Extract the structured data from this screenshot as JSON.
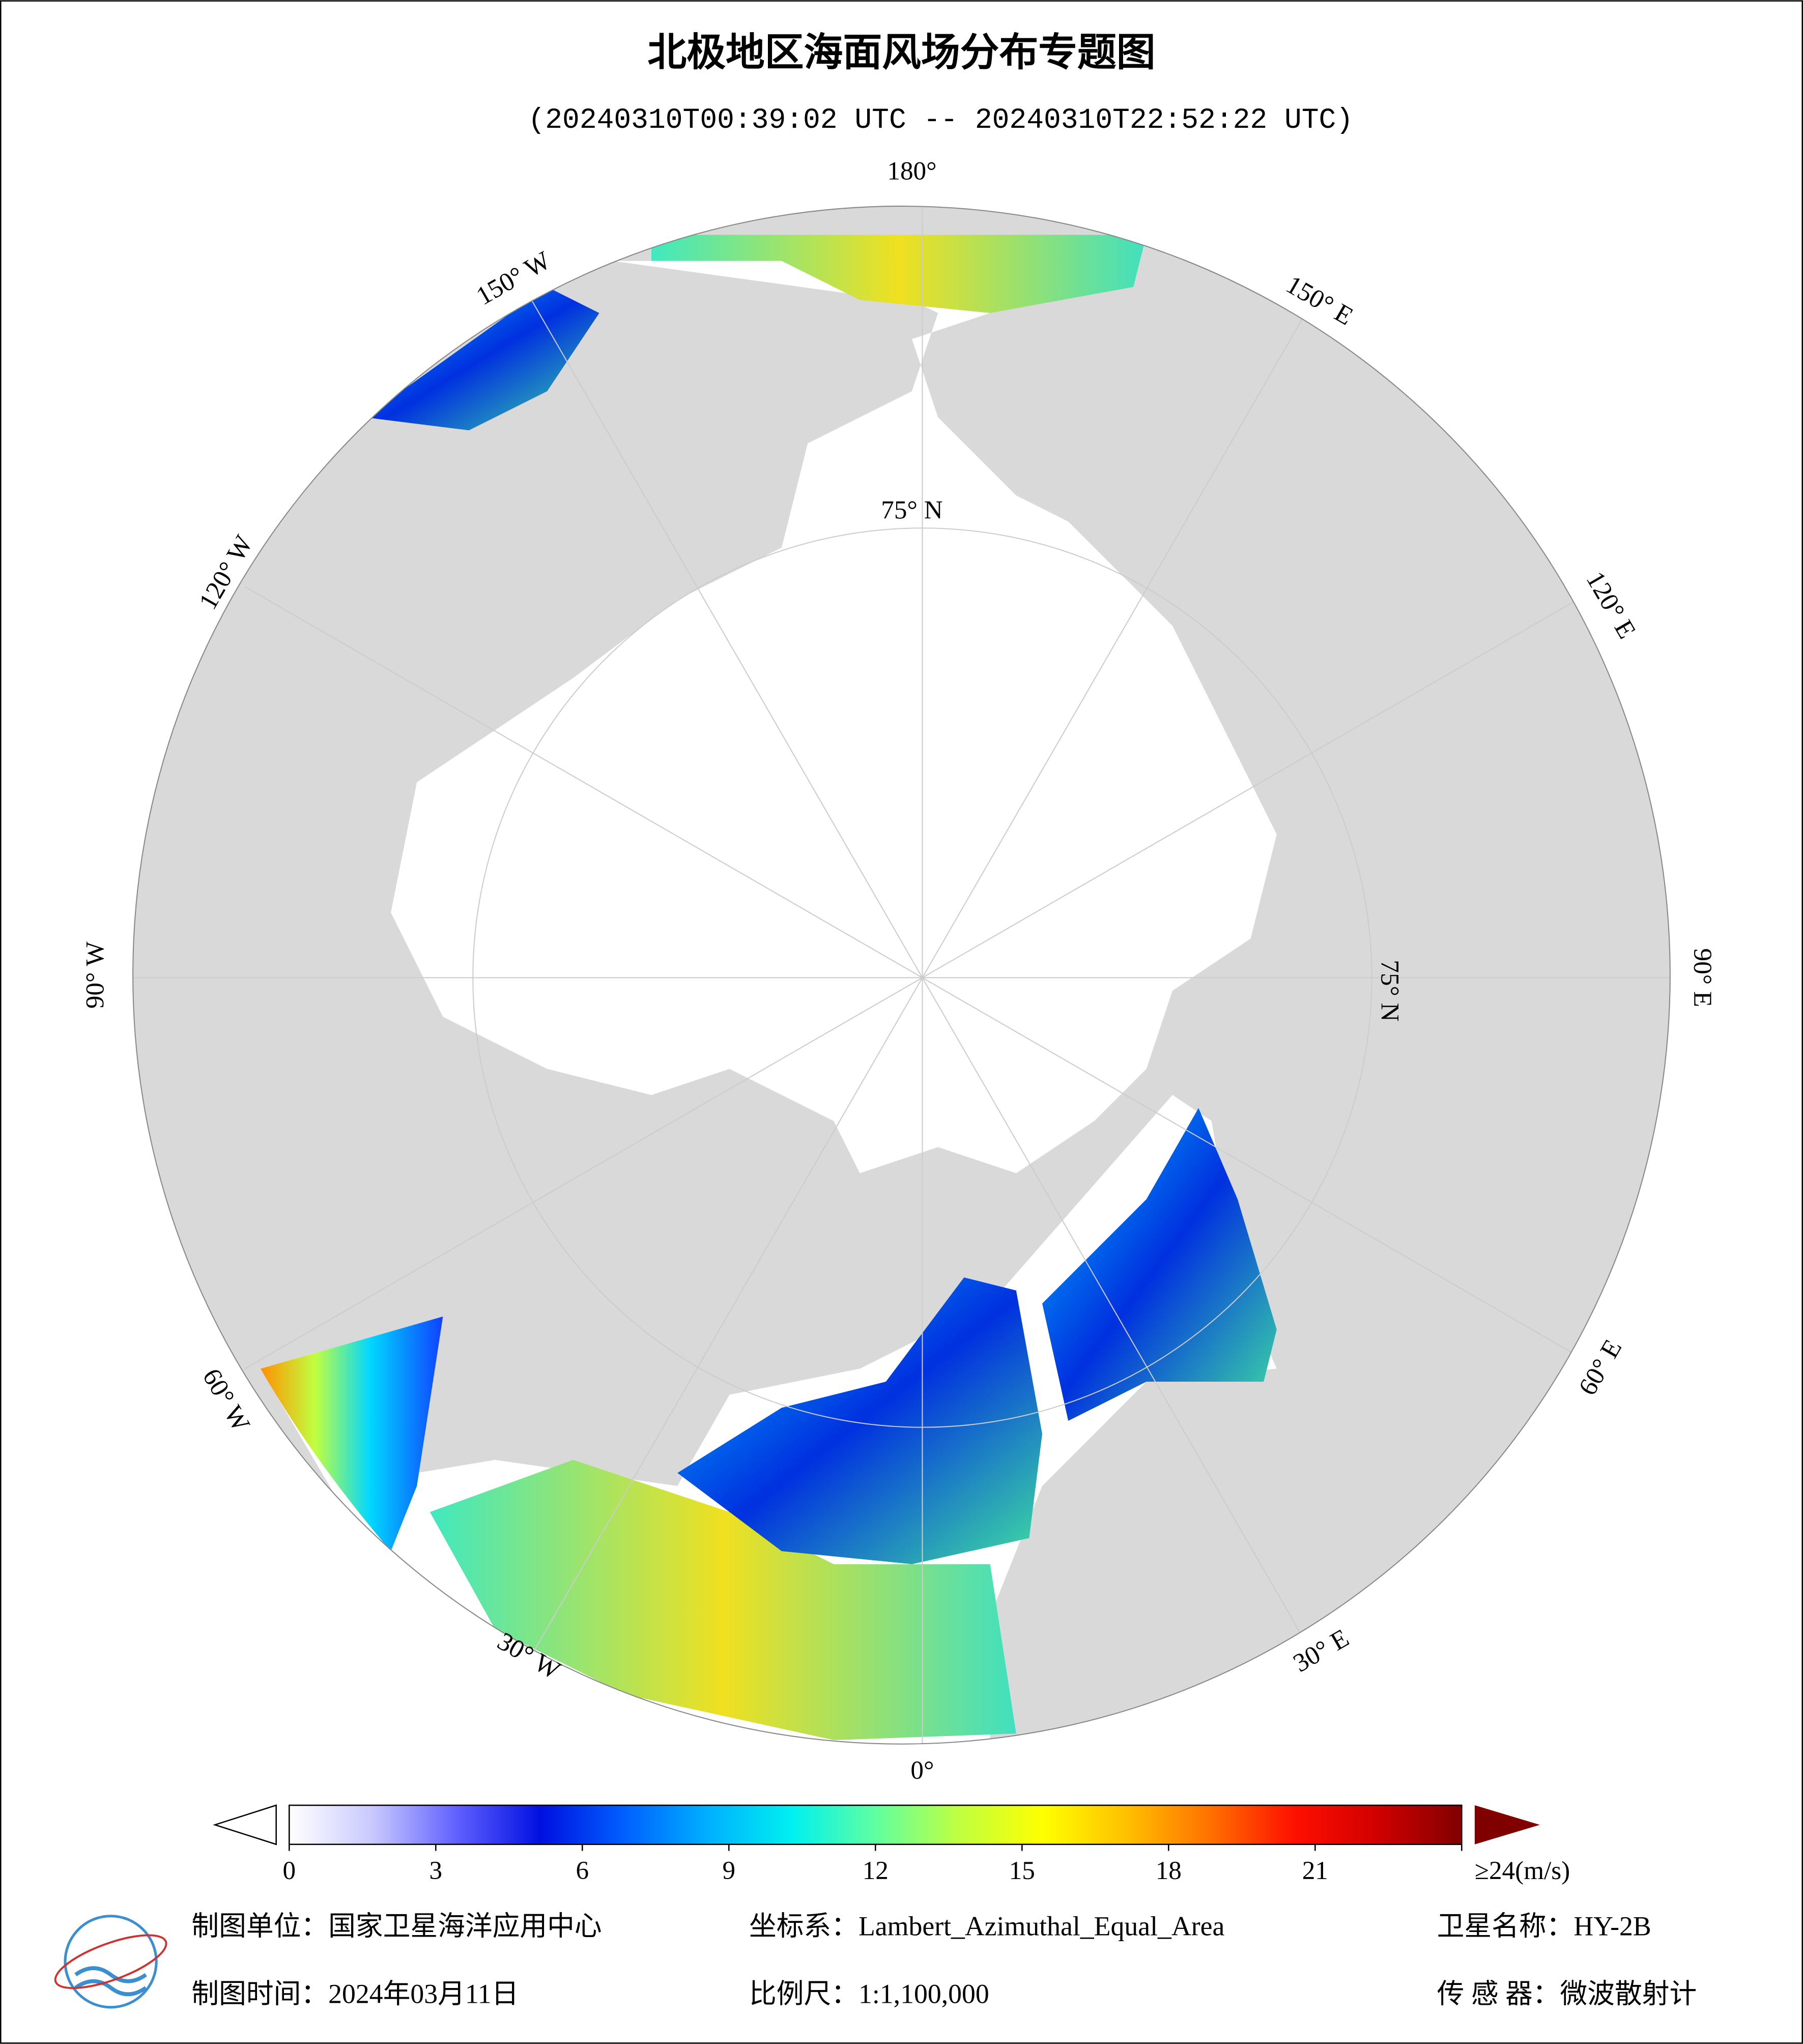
{
  "header": {
    "title": "北极地区海面风场分布专题图",
    "subtitle": "(20240310T00:39:02 UTC -- 20240310T22:52:22 UTC)"
  },
  "map": {
    "labels": [
      "180°",
      "150° W",
      "150° E",
      "120° W",
      "120° E",
      "90° W",
      "90° E",
      "60° W",
      "60° E",
      "30° W",
      "30° E",
      "0°",
      "75° N",
      "75° N"
    ]
  },
  "colorbar": {
    "lim": [
      0,
      24
    ],
    "ticks": [
      0,
      3,
      6,
      9,
      12,
      15,
      18,
      21,
      {
        "value": 24,
        "label": "≥24(m/s)"
      }
    ],
    "colors": [
      "#ffffff",
      "#c8c8ff",
      "#6060ff",
      "#0010e0",
      "#0060ff",
      "#00b0ff",
      "#00f0f0",
      "#60ffa0",
      "#c0ff40",
      "#ffff00",
      "#ffc000",
      "#ff7000",
      "#ff1000",
      "#d00000",
      "#800000"
    ]
  },
  "footer": {
    "unit": "制图单位：国家卫星海洋应用中心",
    "crs": "坐标系：Lambert_Azimuthal_Equal_Area",
    "satellite": "卫星名称：HY-2B",
    "date": "制图时间：2024年03月11日",
    "scale": "比例尺：1:1,100,000",
    "sensor": "传 感 器：微波散射计"
  }
}
